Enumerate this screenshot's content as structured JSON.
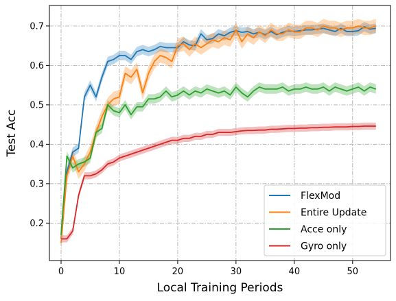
{
  "chart_data": {
    "type": "line",
    "xlabel": "Local Training Periods",
    "ylabel": "Test Acc",
    "xlim": [
      -2,
      56.5
    ],
    "ylim": [
      0.105,
      0.752
    ],
    "xticks": [
      0,
      10,
      20,
      30,
      40,
      50
    ],
    "yticks": [
      0.2,
      0.3,
      0.4,
      0.5,
      0.6,
      0.7
    ],
    "xtick_labels": [
      "0",
      "10",
      "20",
      "30",
      "40",
      "50"
    ],
    "ytick_labels": [
      "0.2",
      "0.3",
      "0.4",
      "0.5",
      "0.6",
      "0.7"
    ],
    "grid": true,
    "legend_position": "lower right",
    "x": [
      0,
      1,
      2,
      3,
      4,
      5,
      6,
      7,
      8,
      9,
      10,
      11,
      12,
      13,
      14,
      15,
      16,
      17,
      18,
      19,
      20,
      21,
      22,
      23,
      24,
      25,
      26,
      27,
      28,
      29,
      30,
      31,
      32,
      33,
      34,
      35,
      36,
      37,
      38,
      39,
      40,
      41,
      42,
      43,
      44,
      45,
      46,
      47,
      48,
      49,
      50,
      51,
      52,
      53,
      54
    ],
    "series": [
      {
        "name": "FlexMod",
        "color": "#1f77b4",
        "band": 0.012,
        "values": [
          0.16,
          0.33,
          0.38,
          0.39,
          0.52,
          0.55,
          0.52,
          0.57,
          0.61,
          0.615,
          0.625,
          0.625,
          0.615,
          0.635,
          0.64,
          0.635,
          0.64,
          0.648,
          0.645,
          0.645,
          0.645,
          0.66,
          0.652,
          0.65,
          0.68,
          0.665,
          0.668,
          0.68,
          0.675,
          0.684,
          0.688,
          0.684,
          0.686,
          0.68,
          0.684,
          0.678,
          0.686,
          0.678,
          0.684,
          0.688,
          0.686,
          0.688,
          0.69,
          0.69,
          0.692,
          0.694,
          0.69,
          0.686,
          0.694,
          0.686,
          0.686,
          0.688,
          0.698,
          0.692,
          0.694
        ]
      },
      {
        "name": "Entire Update",
        "color": "#ff7f0e",
        "band": 0.018,
        "values": [
          0.15,
          0.32,
          0.37,
          0.33,
          0.35,
          0.38,
          0.43,
          0.47,
          0.5,
          0.515,
          0.52,
          0.58,
          0.57,
          0.59,
          0.53,
          0.58,
          0.61,
          0.625,
          0.62,
          0.61,
          0.65,
          0.655,
          0.64,
          0.655,
          0.645,
          0.655,
          0.665,
          0.66,
          0.67,
          0.665,
          0.69,
          0.66,
          0.68,
          0.67,
          0.685,
          0.675,
          0.69,
          0.68,
          0.68,
          0.69,
          0.685,
          0.685,
          0.695,
          0.695,
          0.69,
          0.7,
          0.695,
          0.695,
          0.69,
          0.695,
          0.695,
          0.7,
          0.695,
          0.695,
          0.7
        ]
      },
      {
        "name": "Acce only",
        "color": "#2ca02c",
        "band": 0.012,
        "values": [
          0.17,
          0.37,
          0.34,
          0.35,
          0.355,
          0.365,
          0.43,
          0.44,
          0.5,
          0.485,
          0.48,
          0.5,
          0.475,
          0.495,
          0.495,
          0.515,
          0.515,
          0.52,
          0.535,
          0.52,
          0.525,
          0.535,
          0.525,
          0.535,
          0.53,
          0.54,
          0.535,
          0.53,
          0.535,
          0.525,
          0.545,
          0.53,
          0.52,
          0.535,
          0.545,
          0.54,
          0.54,
          0.54,
          0.545,
          0.535,
          0.54,
          0.54,
          0.545,
          0.54,
          0.54,
          0.545,
          0.535,
          0.545,
          0.54,
          0.535,
          0.54,
          0.545,
          0.535,
          0.545,
          0.54
        ]
      },
      {
        "name": "Gyro only",
        "color": "#d62728",
        "band": 0.009,
        "values": [
          0.16,
          0.16,
          0.18,
          0.27,
          0.32,
          0.32,
          0.325,
          0.335,
          0.35,
          0.355,
          0.365,
          0.37,
          0.375,
          0.38,
          0.385,
          0.39,
          0.395,
          0.4,
          0.405,
          0.41,
          0.41,
          0.415,
          0.415,
          0.42,
          0.42,
          0.425,
          0.425,
          0.43,
          0.43,
          0.43,
          0.432,
          0.434,
          0.435,
          0.435,
          0.436,
          0.436,
          0.438,
          0.438,
          0.439,
          0.44,
          0.44,
          0.441,
          0.441,
          0.442,
          0.442,
          0.443,
          0.443,
          0.444,
          0.444,
          0.444,
          0.445,
          0.445,
          0.446,
          0.446,
          0.446
        ]
      }
    ]
  }
}
